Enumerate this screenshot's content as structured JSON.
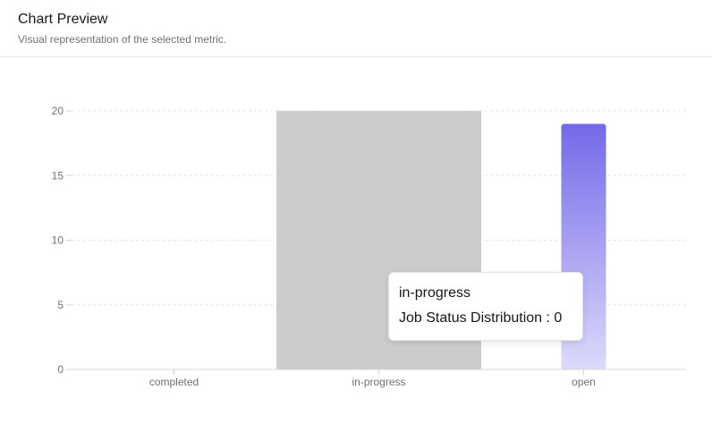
{
  "header": {
    "title": "Chart Preview",
    "subtitle": "Visual representation of the selected metric."
  },
  "colors": {
    "bar_top": "#7469e8",
    "bar_bottom": "#dcdafa",
    "hover_band": "#cccccc",
    "grid": "#e4e4e7",
    "axis": "#d4d4d8",
    "tick_text": "#71717a"
  },
  "chart_data": {
    "type": "bar",
    "categories": [
      "completed",
      "in-progress",
      "open"
    ],
    "series": [
      {
        "name": "Job Status Distribution",
        "values": [
          0,
          0,
          19
        ]
      }
    ],
    "title": "",
    "xlabel": "",
    "ylabel": "",
    "ylim": [
      0,
      20
    ],
    "yticks": [
      "0",
      "5",
      "10",
      "15",
      "20"
    ],
    "grid": true,
    "highlighted_category": "in-progress"
  },
  "tooltip": {
    "label": "in-progress",
    "series_name": "Job Status Distribution",
    "separator": " : ",
    "value": "0"
  }
}
